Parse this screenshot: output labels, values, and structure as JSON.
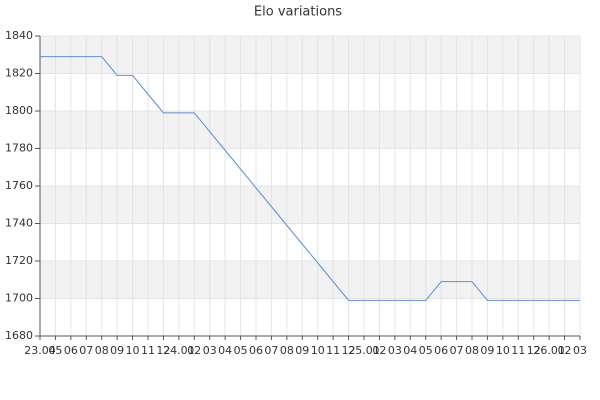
{
  "chart_data": {
    "type": "line",
    "title": "Elo variations",
    "categories": [
      "23.04",
      "05",
      "06",
      "07",
      "08",
      "09",
      "10",
      "11",
      "12",
      "24.01",
      "02",
      "03",
      "04",
      "05",
      "06",
      "07",
      "08",
      "09",
      "10",
      "11",
      "12",
      "25.01",
      "02",
      "03",
      "04",
      "05",
      "06",
      "07",
      "08",
      "09",
      "10",
      "11",
      "12",
      "26.01",
      "02",
      "03"
    ],
    "series": [
      {
        "name": "Elo",
        "color": "#5b8fe0",
        "values": [
          1829,
          1829,
          1829,
          1829,
          1829,
          1819,
          1819,
          1809,
          1799,
          1799,
          1799,
          1789,
          1779,
          1769,
          1759,
          1749,
          1739,
          1729,
          1719,
          1709,
          1699,
          1699,
          1699,
          1699,
          1699,
          1699,
          1709,
          1709,
          1709,
          1699,
          1699,
          1699,
          1699,
          1699,
          1699,
          1699
        ]
      }
    ],
    "ylim": [
      1680,
      1840
    ],
    "yticks": [
      1680,
      1700,
      1720,
      1740,
      1760,
      1780,
      1800,
      1820,
      1840
    ],
    "grid": true
  }
}
